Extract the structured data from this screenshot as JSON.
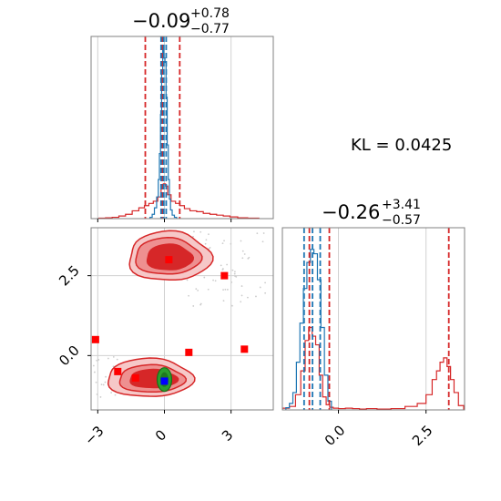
{
  "chart_data": {
    "type": "corner",
    "annotation": "KL = 0.0425",
    "colors": {
      "red": "#d62728",
      "blue": "#1f77b4",
      "green": "#2ca02c",
      "point": "#ff0000",
      "truth": "#0000ff"
    },
    "panels": [
      {
        "name": "param-1-histogram",
        "title": {
          "main": "−0.09",
          "upper": "+0.78",
          "lower": "−0.77"
        },
        "xlim": [
          -3.3,
          4.9
        ],
        "xticks": [],
        "grid_x": [
          -3,
          0,
          3
        ],
        "red_quantiles": [
          -0.86,
          -0.09,
          0.69
        ],
        "blue_quantiles": [
          -0.15,
          -0.03,
          0.08
        ],
        "red_hist": {
          "x": [
            -2.8,
            -2.5,
            -2.2,
            -1.9,
            -1.6,
            -1.3,
            -1.0,
            -0.8,
            -0.6,
            -0.4,
            -0.2,
            -0.1,
            0.0,
            0.1,
            0.2,
            0.4,
            0.6,
            0.8,
            1.0,
            1.3,
            1.6,
            1.9,
            2.2,
            2.5,
            2.8,
            3.1,
            3.5,
            4.0
          ],
          "y": [
            0.1,
            0.2,
            0.3,
            0.6,
            1.0,
            1.8,
            2.5,
            3.0,
            3.5,
            4.0,
            5.0,
            7.5,
            8.0,
            7.5,
            5.5,
            4.0,
            3.5,
            3.0,
            2.3,
            1.8,
            1.6,
            1.2,
            1.0,
            0.8,
            0.6,
            0.4,
            0.2,
            0.1
          ]
        },
        "blue_hist": {
          "x": [
            -0.6,
            -0.5,
            -0.4,
            -0.3,
            -0.25,
            -0.2,
            -0.15,
            -0.1,
            -0.05,
            0.0,
            0.05,
            0.1,
            0.15,
            0.2,
            0.25,
            0.3,
            0.4,
            0.5
          ],
          "y": [
            0.3,
            1.0,
            2.5,
            5.0,
            9.0,
            15.0,
            24.0,
            34.0,
            39.0,
            37.0,
            36.0,
            28.0,
            17.0,
            9.0,
            4.5,
            2.0,
            0.8,
            0.3
          ]
        },
        "ymax": 40
      },
      {
        "name": "param-2-histogram",
        "title": {
          "main": "−0.26",
          "upper": "+3.41",
          "lower": "−0.57"
        },
        "xlim": [
          -1.6,
          3.6
        ],
        "xticks": [
          "0.0",
          "2.5"
        ],
        "xtick_values": [
          0.0,
          2.5
        ],
        "grid_x": [
          0.0,
          2.5
        ],
        "red_quantiles": [
          -0.83,
          -0.26,
          3.15
        ],
        "blue_quantiles": [
          -0.98,
          -0.74,
          -0.52
        ],
        "red_hist": {
          "x": [
            -1.5,
            -1.3,
            -1.15,
            -1.0,
            -0.9,
            -0.8,
            -0.7,
            -0.6,
            -0.5,
            -0.4,
            -0.3,
            -0.2,
            -0.1,
            0.1,
            0.3,
            0.5,
            0.7,
            0.9,
            1.3,
            1.7,
            2.1,
            2.4,
            2.6,
            2.75,
            2.85,
            2.95,
            3.05,
            3.15,
            3.25,
            3.35,
            3.5
          ],
          "y": [
            0.4,
            0.8,
            3.5,
            9.0,
            16.0,
            19.0,
            17.0,
            15.0,
            8.0,
            3.0,
            1.2,
            0.6,
            0.4,
            0.3,
            0.4,
            0.3,
            0.2,
            0.3,
            0.2,
            0.3,
            0.8,
            1.5,
            3.5,
            7.0,
            9.0,
            11.0,
            12.0,
            10.0,
            7.0,
            4.0,
            1.0
          ]
        },
        "blue_hist": {
          "x": [
            -1.45,
            -1.35,
            -1.25,
            -1.15,
            -1.05,
            -0.95,
            -0.85,
            -0.75,
            -0.65,
            -0.55,
            -0.45,
            -0.35,
            -0.25
          ],
          "y": [
            0.5,
            1.5,
            4.0,
            11.0,
            20.0,
            28.0,
            34.0,
            37.0,
            36.0,
            30.0,
            19.0,
            8.0,
            2.0
          ]
        },
        "ymax": 40
      },
      {
        "name": "param-1-vs-param-2-scatter",
        "xlim": [
          -3.3,
          4.9
        ],
        "ylim": [
          -1.7,
          4.0
        ],
        "xticks": [
          "−3",
          "0",
          "3"
        ],
        "xtick_values": [
          -3,
          0,
          3
        ],
        "yticks": [
          "0.0",
          "2.5"
        ],
        "ytick_values": [
          0.0,
          2.5
        ],
        "grid_x": [
          -3,
          0,
          3
        ],
        "grid_y": [
          0.0,
          2.5
        ],
        "red_square_points": [
          {
            "x": -3.1,
            "y": 0.5
          },
          {
            "x": -2.1,
            "y": -0.5
          },
          {
            "x": -1.3,
            "y": -0.7
          },
          {
            "x": 0.2,
            "y": 3.0
          },
          {
            "x": 1.1,
            "y": 0.1
          },
          {
            "x": 2.7,
            "y": 2.5
          },
          {
            "x": 3.6,
            "y": 0.2
          }
        ],
        "truth_point": {
          "x": 0.0,
          "y": -0.8
        },
        "green_center": {
          "x": 0.0,
          "y": -0.75
        },
        "upper_mode_center": {
          "x": 0.3,
          "y": 3.1
        },
        "lower_mode_center": {
          "x": -0.75,
          "y": -0.7
        }
      }
    ]
  }
}
